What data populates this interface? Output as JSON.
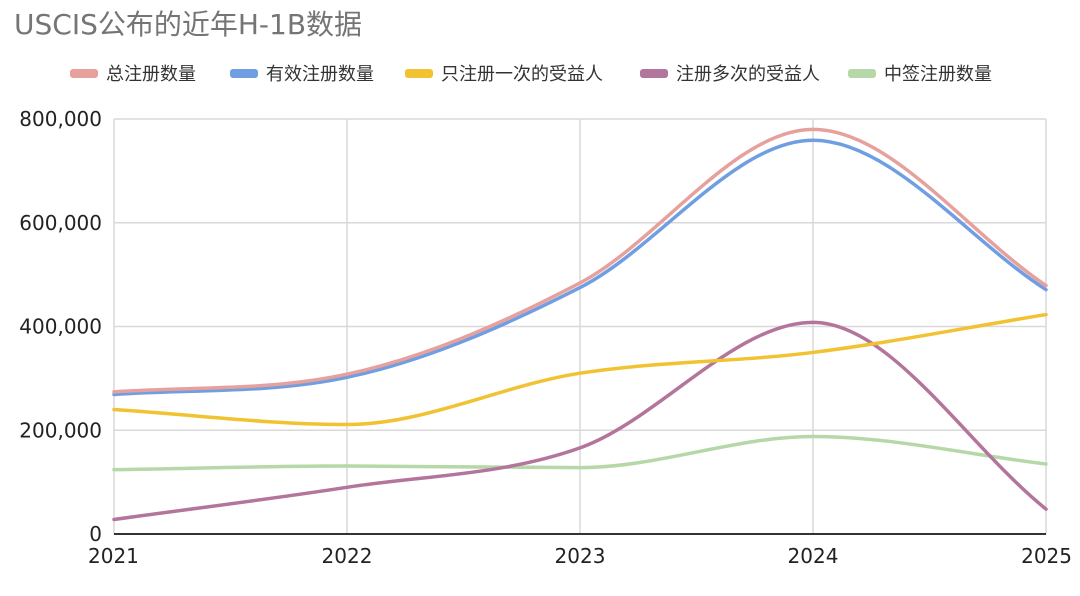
{
  "chart_data": {
    "type": "line",
    "title": "USCIS公布的近年H-1B数据",
    "subtitle": "",
    "xlabel": "",
    "ylabel": "",
    "categories": [
      "2021",
      "2022",
      "2023",
      "2024",
      "2025"
    ],
    "ylim": [
      0,
      800000
    ],
    "y_ticks": [
      0,
      200000,
      400000,
      600000,
      800000
    ],
    "y_tick_labels": [
      "0",
      "200,000",
      "400,000",
      "600,000",
      "800,000"
    ],
    "grid": true,
    "legend_position": "top",
    "smooth": true,
    "series": [
      {
        "name": "总注册数量",
        "color": "#e6a19d",
        "values": [
          274000,
          308000,
          484000,
          780000,
          479000
        ]
      },
      {
        "name": "有效注册数量",
        "color": "#6f9ee2",
        "values": [
          269000,
          302000,
          475000,
          759000,
          471000
        ]
      },
      {
        "name": "只注册一次的受益人",
        "color": "#f1c232",
        "values": [
          240000,
          211000,
          310000,
          350000,
          423000
        ]
      },
      {
        "name": "注册多次的受益人",
        "color": "#b3759b",
        "values": [
          28000,
          90000,
          166000,
          408000,
          48000
        ]
      },
      {
        "name": "中签注册数量",
        "color": "#b6d7a8",
        "values": [
          124000,
          131000,
          128000,
          188000,
          135000
        ]
      }
    ]
  }
}
